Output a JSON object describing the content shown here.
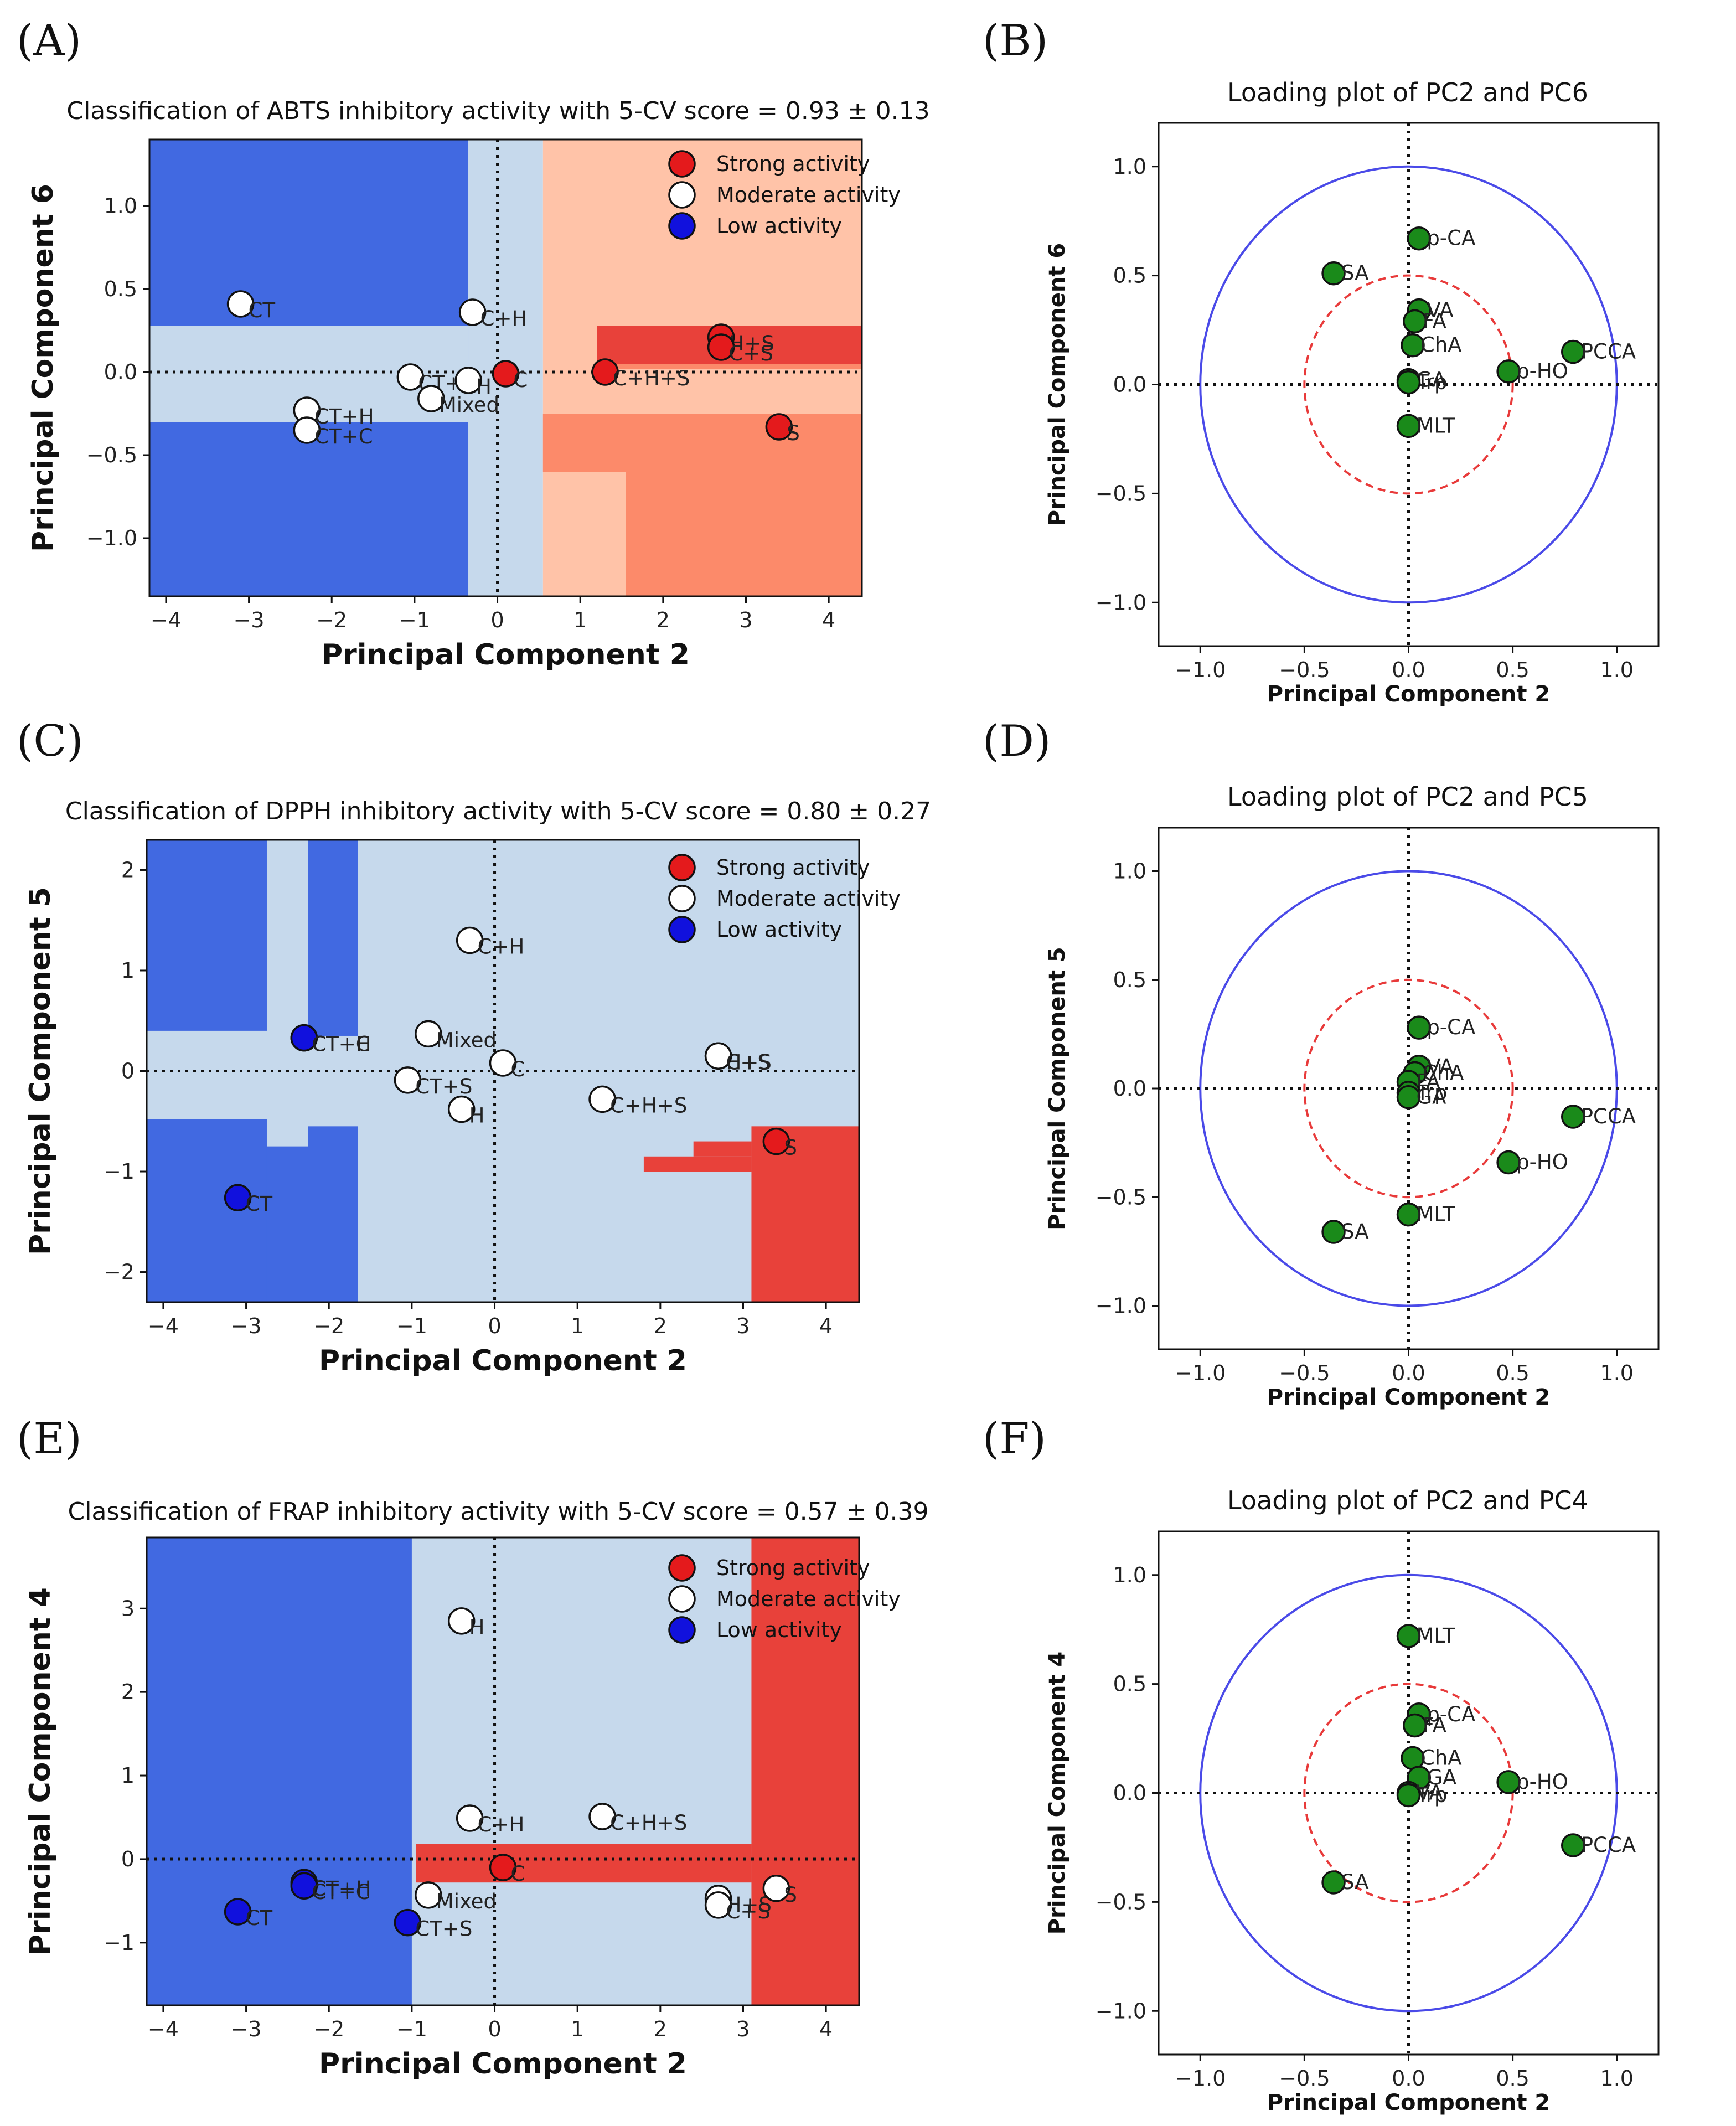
{
  "figure": {
    "legend": {
      "strong": "Strong activity",
      "moderate": "Moderate activity",
      "low": "Low activity"
    },
    "colors": {
      "strong": "#e41a1c",
      "moderate": "#ffffff",
      "low": "#1111dd",
      "loading": "#1a8a1a",
      "region_dark_blue": "#4169e1",
      "region_light_blue": "#c6d9ec",
      "region_red": "#e8413a",
      "region_salmon": "#ffc3a8",
      "region_orange": "#fc8a6a",
      "unit_circle": "#4a4ae8",
      "half_circle": "#e83a3a"
    }
  },
  "chart_data": [
    {
      "panel": "A",
      "panel_label": "(A)",
      "type": "scatter",
      "title": "Classification of ABTS inhibitory activity with 5-CV score = 0.93 ± 0.13",
      "xlabel": "Principal Component 2",
      "ylabel": "Principal Component 6",
      "xlim": [
        -4.2,
        4.4
      ],
      "ylim": [
        -1.35,
        1.4
      ],
      "xticks": [
        -4,
        -3,
        -2,
        -1,
        0,
        1,
        2,
        3,
        4
      ],
      "xtick_labels": [
        "−4",
        "−3",
        "−2",
        "−1",
        "0",
        "1",
        "2",
        "3",
        "4"
      ],
      "yticks": [
        -1.0,
        -0.5,
        0.0,
        0.5,
        1.0
      ],
      "ytick_labels": [
        "−1.0",
        "−0.5",
        "0.0",
        "0.5",
        "1.0"
      ],
      "legend_position": "top-right",
      "regions": [
        {
          "class": "region_dark_blue",
          "x": [
            -4.2,
            -0.35
          ],
          "y": [
            -1.35,
            1.4
          ]
        },
        {
          "class": "region_light_blue",
          "x": [
            -0.35,
            0.55
          ],
          "y": [
            -1.35,
            1.4
          ]
        },
        {
          "class": "region_light_blue",
          "x": [
            -4.2,
            -0.35
          ],
          "y": [
            -0.3,
            0.28
          ]
        },
        {
          "class": "region_salmon",
          "x": [
            0.55,
            4.4
          ],
          "y": [
            -1.35,
            1.4
          ]
        },
        {
          "class": "region_orange",
          "x": [
            1.2,
            4.4
          ],
          "y": [
            0.02,
            0.28
          ]
        },
        {
          "class": "region_red",
          "x": [
            1.2,
            4.4
          ],
          "y": [
            0.05,
            0.28
          ]
        },
        {
          "class": "region_orange",
          "x": [
            0.55,
            4.4
          ],
          "y": [
            -0.6,
            -0.25
          ]
        },
        {
          "class": "region_orange",
          "x": [
            1.55,
            4.4
          ],
          "y": [
            -1.35,
            -0.25
          ]
        }
      ],
      "points": [
        {
          "label": "CT",
          "x": -3.1,
          "y": 0.41,
          "class": "moderate"
        },
        {
          "label": "CT+H",
          "x": -2.3,
          "y": -0.23,
          "class": "moderate"
        },
        {
          "label": "CT+C",
          "x": -2.3,
          "y": -0.35,
          "class": "moderate"
        },
        {
          "label": "C+H",
          "x": -0.3,
          "y": 0.36,
          "class": "moderate"
        },
        {
          "label": "CT+S",
          "x": -1.05,
          "y": -0.03,
          "class": "moderate"
        },
        {
          "label": "H",
          "x": -0.35,
          "y": -0.05,
          "class": "moderate"
        },
        {
          "label": "Mixed",
          "x": -0.8,
          "y": -0.16,
          "class": "moderate"
        },
        {
          "label": "C",
          "x": 0.1,
          "y": -0.01,
          "class": "strong"
        },
        {
          "label": "C+H+S",
          "x": 1.3,
          "y": 0.0,
          "class": "strong"
        },
        {
          "label": "H+S",
          "x": 2.7,
          "y": 0.21,
          "class": "strong"
        },
        {
          "label": "C+S",
          "x": 2.7,
          "y": 0.15,
          "class": "strong"
        },
        {
          "label": "S",
          "x": 3.4,
          "y": -0.33,
          "class": "strong"
        }
      ]
    },
    {
      "panel": "B",
      "panel_label": "(B)",
      "type": "scatter",
      "title": "Loading plot of PC2 and PC6",
      "xlabel": "Principal Component 2",
      "ylabel": "Principal Component 6",
      "xlim": [
        -1.2,
        1.2
      ],
      "ylim": [
        -1.2,
        1.2
      ],
      "xticks": [
        -1.0,
        -0.5,
        0.0,
        0.5,
        1.0
      ],
      "xtick_labels": [
        "−1.0",
        "−0.5",
        "0.0",
        "0.5",
        "1.0"
      ],
      "yticks": [
        -1.0,
        -0.5,
        0.0,
        0.5,
        1.0
      ],
      "ytick_labels": [
        "−1.0",
        "−0.5",
        "0.0",
        "0.5",
        "1.0"
      ],
      "circles": [
        1.0,
        0.5
      ],
      "points": [
        {
          "label": "p-CA",
          "x": 0.05,
          "y": 0.67
        },
        {
          "label": "SA",
          "x": -0.36,
          "y": 0.51
        },
        {
          "label": "VA",
          "x": 0.05,
          "y": 0.34
        },
        {
          "label": "FA",
          "x": 0.03,
          "y": 0.29
        },
        {
          "label": "ChA",
          "x": 0.02,
          "y": 0.18
        },
        {
          "label": "GA",
          "x": 0.0,
          "y": 0.02
        },
        {
          "label": "Trp",
          "x": 0.0,
          "y": 0.01
        },
        {
          "label": "MLT",
          "x": 0.0,
          "y": -0.19
        },
        {
          "label": "p-HO",
          "x": 0.48,
          "y": 0.06
        },
        {
          "label": "PCCA",
          "x": 0.79,
          "y": 0.15
        }
      ]
    },
    {
      "panel": "C",
      "panel_label": "(C)",
      "type": "scatter",
      "title": "Classification of DPPH inhibitory activity with 5-CV score = 0.80 ± 0.27",
      "xlabel": "Principal Component 2",
      "ylabel": "Principal Component 5",
      "xlim": [
        -4.2,
        4.4
      ],
      "ylim": [
        -2.3,
        2.3
      ],
      "xticks": [
        -4,
        -3,
        -2,
        -1,
        0,
        1,
        2,
        3,
        4
      ],
      "xtick_labels": [
        "−4",
        "−3",
        "−2",
        "−1",
        "0",
        "1",
        "2",
        "3",
        "4"
      ],
      "yticks": [
        -2,
        -1,
        0,
        1,
        2
      ],
      "ytick_labels": [
        "−2",
        "−1",
        "0",
        "1",
        "2"
      ],
      "legend_position": "top-right",
      "regions": [
        {
          "class": "region_light_blue",
          "x": [
            -4.2,
            4.4
          ],
          "y": [
            -2.3,
            2.3
          ]
        },
        {
          "class": "region_dark_blue",
          "x": [
            -4.2,
            -2.75
          ],
          "y": [
            0.4,
            2.3
          ]
        },
        {
          "class": "region_dark_blue",
          "x": [
            -2.25,
            -1.65
          ],
          "y": [
            0.35,
            2.3
          ]
        },
        {
          "class": "region_dark_blue",
          "x": [
            -4.2,
            -1.65
          ],
          "y": [
            -2.3,
            -0.75
          ]
        },
        {
          "class": "region_dark_blue",
          "x": [
            -4.2,
            -2.75
          ],
          "y": [
            -2.3,
            -0.48
          ]
        },
        {
          "class": "region_dark_blue",
          "x": [
            -2.25,
            -1.65
          ],
          "y": [
            -2.3,
            -0.55
          ]
        },
        {
          "class": "region_red",
          "x": [
            3.1,
            4.4
          ],
          "y": [
            -2.3,
            -0.55
          ]
        },
        {
          "class": "region_red",
          "x": [
            1.8,
            3.1
          ],
          "y": [
            -1.0,
            -0.85
          ]
        },
        {
          "class": "region_red",
          "x": [
            2.4,
            3.1
          ],
          "y": [
            -0.85,
            -0.7
          ]
        }
      ],
      "points": [
        {
          "label": "C+H",
          "x": -0.3,
          "y": 1.3,
          "class": "moderate"
        },
        {
          "label": "CT+C",
          "x": -2.3,
          "y": 0.33,
          "class": "low"
        },
        {
          "label": "CT+H",
          "x": -2.3,
          "y": 0.33,
          "class": "low"
        },
        {
          "label": "Mixed",
          "x": -0.8,
          "y": 0.37,
          "class": "moderate"
        },
        {
          "label": "C",
          "x": 0.1,
          "y": 0.08,
          "class": "moderate"
        },
        {
          "label": "H+S",
          "x": 2.7,
          "y": 0.15,
          "class": "moderate"
        },
        {
          "label": "C+S",
          "x": 2.7,
          "y": 0.15,
          "class": "moderate"
        },
        {
          "label": "CT+S",
          "x": -1.05,
          "y": -0.09,
          "class": "moderate"
        },
        {
          "label": "H",
          "x": -0.4,
          "y": -0.38,
          "class": "moderate"
        },
        {
          "label": "C+H+S",
          "x": 1.3,
          "y": -0.28,
          "class": "moderate"
        },
        {
          "label": "S",
          "x": 3.4,
          "y": -0.7,
          "class": "strong"
        },
        {
          "label": "CT",
          "x": -3.1,
          "y": -1.26,
          "class": "low"
        }
      ]
    },
    {
      "panel": "D",
      "panel_label": "(D)",
      "type": "scatter",
      "title": "Loading plot of PC2 and PC5",
      "xlabel": "Principal Component 2",
      "ylabel": "Principal Component 5",
      "xlim": [
        -1.2,
        1.2
      ],
      "ylim": [
        -1.2,
        1.2
      ],
      "xticks": [
        -1.0,
        -0.5,
        0.0,
        0.5,
        1.0
      ],
      "xtick_labels": [
        "−1.0",
        "−0.5",
        "0.0",
        "0.5",
        "1.0"
      ],
      "yticks": [
        -1.0,
        -0.5,
        0.0,
        0.5,
        1.0
      ],
      "ytick_labels": [
        "−1.0",
        "−0.5",
        "0.0",
        "0.5",
        "1.0"
      ],
      "circles": [
        1.0,
        0.5
      ],
      "points": [
        {
          "label": "p-CA",
          "x": 0.05,
          "y": 0.28
        },
        {
          "label": "VA",
          "x": 0.05,
          "y": 0.1
        },
        {
          "label": "ChA",
          "x": 0.03,
          "y": 0.07
        },
        {
          "label": "FA",
          "x": 0.0,
          "y": 0.03
        },
        {
          "label": "Trp",
          "x": 0.0,
          "y": -0.02
        },
        {
          "label": "GA",
          "x": 0.0,
          "y": -0.04
        },
        {
          "label": "PCCA",
          "x": 0.79,
          "y": -0.13
        },
        {
          "label": "p-HO",
          "x": 0.48,
          "y": -0.34
        },
        {
          "label": "MLT",
          "x": 0.0,
          "y": -0.58
        },
        {
          "label": "SA",
          "x": -0.36,
          "y": -0.66
        }
      ]
    },
    {
      "panel": "E",
      "panel_label": "(E)",
      "type": "scatter",
      "title": "Classification of FRAP inhibitory activity with 5-CV score = 0.57 ± 0.39",
      "xlabel": "Principal Component 2",
      "ylabel": "Principal Component 4",
      "xlim": [
        -4.2,
        4.4
      ],
      "ylim": [
        -1.75,
        3.85
      ],
      "xticks": [
        -4,
        -3,
        -2,
        -1,
        0,
        1,
        2,
        3,
        4
      ],
      "xtick_labels": [
        "−4",
        "−3",
        "−2",
        "−1",
        "0",
        "1",
        "2",
        "3",
        "4"
      ],
      "yticks": [
        -1,
        0,
        1,
        2,
        3
      ],
      "ytick_labels": [
        "−1",
        "0",
        "1",
        "2",
        "3"
      ],
      "legend_position": "top-right",
      "regions": [
        {
          "class": "region_light_blue",
          "x": [
            -4.2,
            4.4
          ],
          "y": [
            -1.75,
            3.85
          ]
        },
        {
          "class": "region_dark_blue",
          "x": [
            -4.2,
            -1.0
          ],
          "y": [
            -1.75,
            3.85
          ]
        },
        {
          "class": "region_red",
          "x": [
            3.1,
            4.4
          ],
          "y": [
            -1.75,
            3.85
          ]
        },
        {
          "class": "region_red",
          "x": [
            -0.95,
            3.1
          ],
          "y": [
            -0.28,
            0.18
          ]
        }
      ],
      "points": [
        {
          "label": "H",
          "x": -0.4,
          "y": 2.85,
          "class": "moderate"
        },
        {
          "label": "C+H",
          "x": -0.3,
          "y": 0.49,
          "class": "moderate"
        },
        {
          "label": "C+H+S",
          "x": 1.3,
          "y": 0.51,
          "class": "moderate"
        },
        {
          "label": "C",
          "x": 0.1,
          "y": -0.1,
          "class": "strong"
        },
        {
          "label": "CT+H",
          "x": -2.3,
          "y": -0.28,
          "class": "low"
        },
        {
          "label": "CT+C",
          "x": -2.3,
          "y": -0.32,
          "class": "low"
        },
        {
          "label": "Mixed",
          "x": -0.8,
          "y": -0.43,
          "class": "moderate"
        },
        {
          "label": "CT",
          "x": -3.1,
          "y": -0.63,
          "class": "low"
        },
        {
          "label": "CT+S",
          "x": -1.05,
          "y": -0.76,
          "class": "low"
        },
        {
          "label": "H+S",
          "x": 2.7,
          "y": -0.47,
          "class": "moderate"
        },
        {
          "label": "C+S",
          "x": 2.7,
          "y": -0.55,
          "class": "moderate"
        },
        {
          "label": "S",
          "x": 3.4,
          "y": -0.35,
          "class": "moderate"
        }
      ]
    },
    {
      "panel": "F",
      "panel_label": "(F)",
      "type": "scatter",
      "title": "Loading plot of PC2 and PC4",
      "xlabel": "Principal Component 2",
      "ylabel": "Principal Component 4",
      "xlim": [
        -1.2,
        1.2
      ],
      "ylim": [
        -1.2,
        1.2
      ],
      "xticks": [
        -1.0,
        -0.5,
        0.0,
        0.5,
        1.0
      ],
      "xtick_labels": [
        "−1.0",
        "−0.5",
        "0.0",
        "0.5",
        "1.0"
      ],
      "yticks": [
        -1.0,
        -0.5,
        0.0,
        0.5,
        1.0
      ],
      "ytick_labels": [
        "−1.0",
        "−0.5",
        "0.0",
        "0.5",
        "1.0"
      ],
      "circles": [
        1.0,
        0.5
      ],
      "points": [
        {
          "label": "MLT",
          "x": 0.0,
          "y": 0.72
        },
        {
          "label": "p-CA",
          "x": 0.05,
          "y": 0.36
        },
        {
          "label": "FA",
          "x": 0.03,
          "y": 0.31
        },
        {
          "label": "ChA",
          "x": 0.02,
          "y": 0.16
        },
        {
          "label": "GA",
          "x": 0.05,
          "y": 0.07
        },
        {
          "label": "p-HO",
          "x": 0.48,
          "y": 0.05
        },
        {
          "label": "VA",
          "x": 0.0,
          "y": 0.0
        },
        {
          "label": "Trp",
          "x": 0.0,
          "y": -0.01
        },
        {
          "label": "PCCA",
          "x": 0.79,
          "y": -0.24
        },
        {
          "label": "SA",
          "x": -0.36,
          "y": -0.41
        }
      ]
    }
  ]
}
